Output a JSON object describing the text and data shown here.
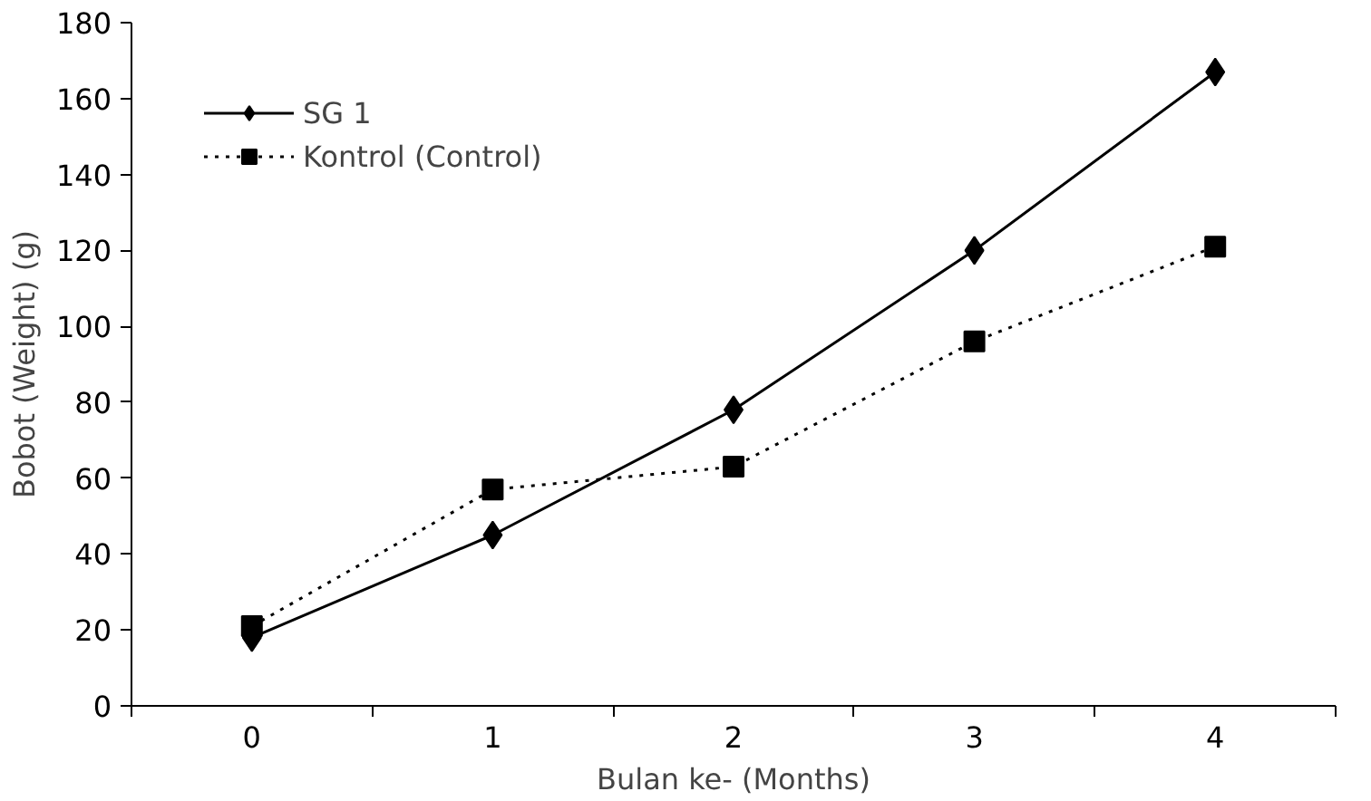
{
  "chart_data": {
    "type": "line",
    "xlabel": "Bulan ke- (Months)",
    "ylabel": "Bobot (Weight) (g)",
    "categories": [
      "0",
      "1",
      "2",
      "3",
      "4"
    ],
    "series": [
      {
        "name": "SG 1",
        "color": "#000000",
        "values": [
          18,
          45,
          78,
          120,
          167
        ],
        "marker": "diamond",
        "line_style": "solid"
      },
      {
        "name": "Kontrol (Control)",
        "color": "#000000",
        "values": [
          21,
          57,
          63,
          96,
          121
        ],
        "marker": "square",
        "line_style": "dotted"
      }
    ],
    "ylim": [
      0,
      180
    ],
    "yticks": [
      0,
      20,
      40,
      60,
      80,
      100,
      120,
      140,
      160,
      180
    ],
    "grid": false,
    "legend": "top left"
  }
}
